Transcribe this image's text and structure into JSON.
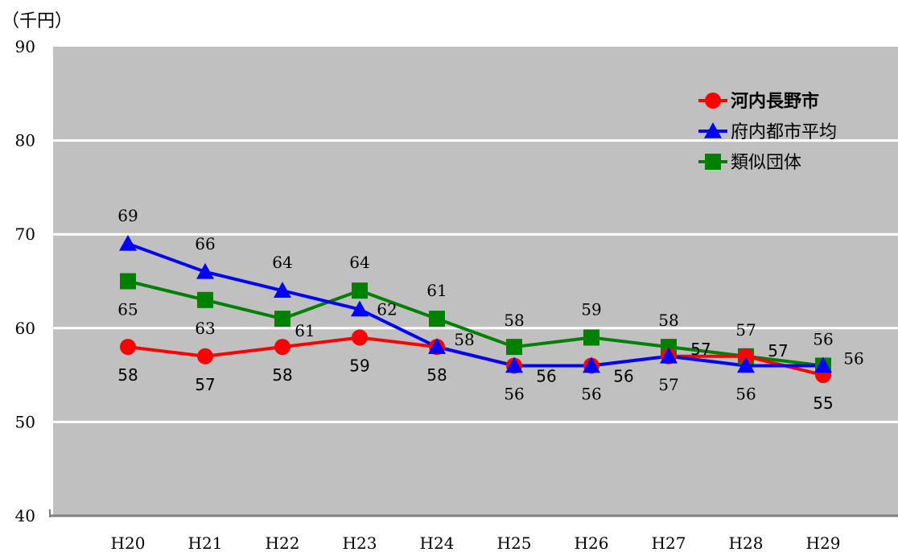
{
  "chart_data": {
    "type": "line",
    "unit_label": "（千円）",
    "categories": [
      "H20",
      "H21",
      "H22",
      "H23",
      "H24",
      "H25",
      "H26",
      "H27",
      "H28",
      "H29"
    ],
    "ylim": [
      40,
      90
    ],
    "yticks": [
      40,
      50,
      60,
      70,
      80,
      90
    ],
    "grid": true,
    "legend_position": "top-right",
    "series": [
      {
        "name": "河内長野市",
        "color": "#ff0000",
        "marker": "circle",
        "values": [
          58,
          57,
          58,
          59,
          58,
          56,
          56,
          57,
          57,
          55
        ]
      },
      {
        "name": "府内都市平均",
        "color": "#0000ff",
        "marker": "triangle",
        "values": [
          69,
          66,
          64,
          62,
          58,
          56,
          56,
          57,
          56,
          56
        ]
      },
      {
        "name": "類似団体",
        "color": "#008000",
        "marker": "square",
        "values": [
          65,
          63,
          61,
          64,
          61,
          58,
          59,
          58,
          57,
          56
        ]
      }
    ],
    "colors": {
      "plot_background": "#c0c0c0",
      "gridline": "#ffffff",
      "axis": "#808080"
    }
  }
}
